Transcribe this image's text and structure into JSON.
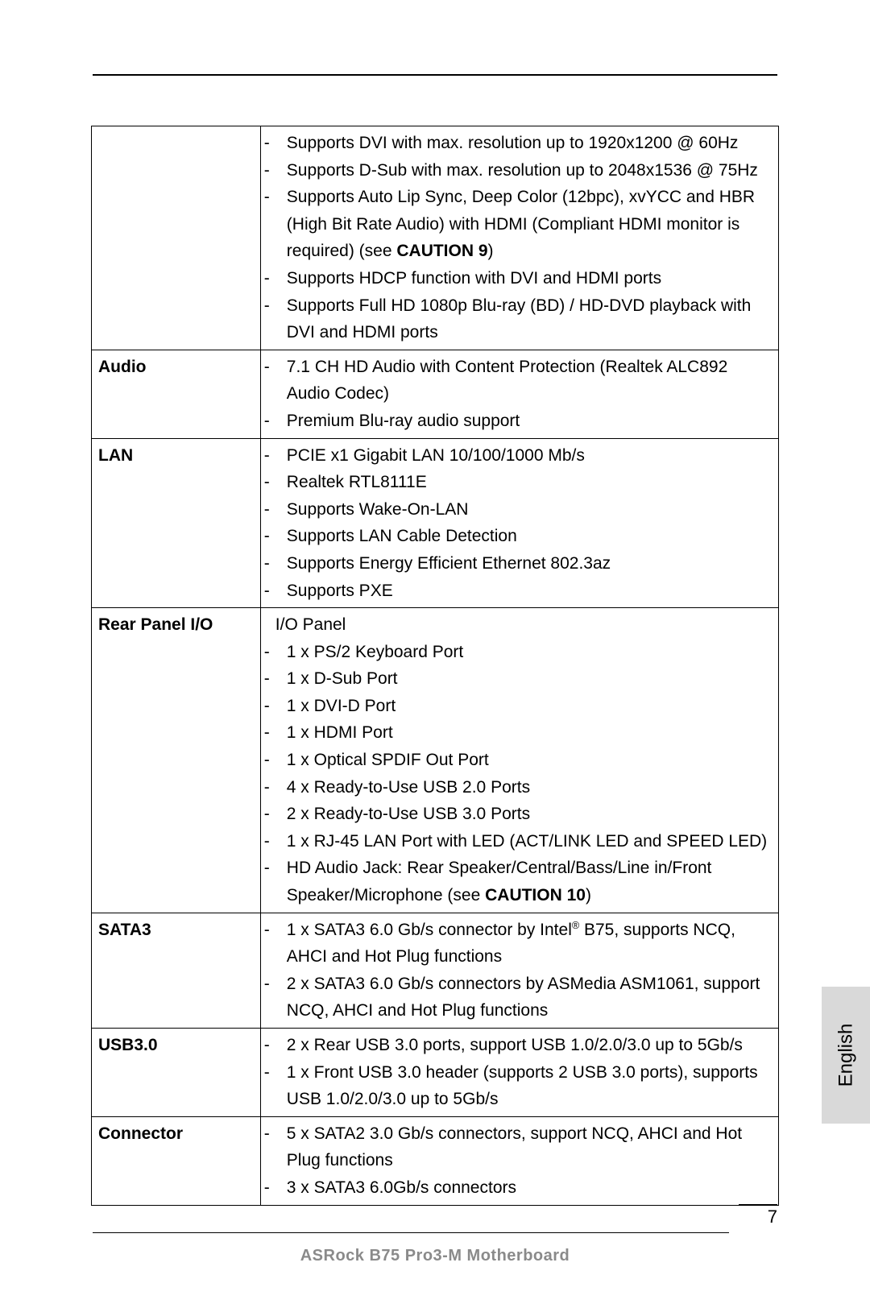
{
  "page": {
    "number": "7",
    "footer": "ASRock  B75 Pro3-M  Motherboard",
    "language_tab": "English"
  },
  "rows": [
    {
      "label": "",
      "items": [
        {
          "type": "dash",
          "text": "Supports DVI with max. resolution up to 1920x1200 @ 60Hz"
        },
        {
          "type": "dash",
          "text": "Supports D-Sub with max. resolution up to 2048x1536 @ 75Hz"
        },
        {
          "type": "dash",
          "parts": [
            {
              "t": "Supports Auto Lip Sync, Deep Color (12bpc), xvYCC and HBR (High Bit Rate Audio) with HDMI (Compliant HDMI monitor is required) (see "
            },
            {
              "t": "CAUTION 9",
              "bold": true
            },
            {
              "t": ")"
            }
          ]
        },
        {
          "type": "dash",
          "text": "Supports HDCP function with DVI and HDMI ports"
        },
        {
          "type": "dash",
          "text": "Supports Full HD 1080p Blu-ray (BD) / HD-DVD playback with DVI and HDMI ports"
        }
      ]
    },
    {
      "label": "Audio",
      "items": [
        {
          "type": "dash",
          "text": "7.1 CH HD Audio with Content Protection (Realtek ALC892 Audio Codec)"
        },
        {
          "type": "dash",
          "text": "Premium Blu-ray audio support"
        }
      ]
    },
    {
      "label": "LAN",
      "items": [
        {
          "type": "dash",
          "text": "PCIE x1 Gigabit LAN 10/100/1000 Mb/s"
        },
        {
          "type": "dash",
          "text": "Realtek RTL8111E"
        },
        {
          "type": "dash",
          "text": "Supports Wake-On-LAN"
        },
        {
          "type": "dash",
          "text": "Supports LAN Cable Detection"
        },
        {
          "type": "dash",
          "text": "Supports Energy Efficient Ethernet 802.3az"
        },
        {
          "type": "dash",
          "text": "Supports PXE"
        }
      ]
    },
    {
      "label": "Rear Panel I/O",
      "items": [
        {
          "type": "plain",
          "text": "I/O Panel"
        },
        {
          "type": "dash",
          "text": "1 x PS/2 Keyboard Port"
        },
        {
          "type": "dash",
          "text": "1 x D-Sub Port"
        },
        {
          "type": "dash",
          "text": "1 x DVI-D Port"
        },
        {
          "type": "dash",
          "text": "1 x HDMI Port"
        },
        {
          "type": "dash",
          "text": "1 x Optical SPDIF Out Port"
        },
        {
          "type": "dash",
          "text": "4 x Ready-to-Use USB 2.0 Ports"
        },
        {
          "type": "dash",
          "text": "2 x Ready-to-Use USB 3.0 Ports"
        },
        {
          "type": "dash",
          "text": "1 x RJ-45 LAN Port with LED (ACT/LINK LED and SPEED LED)"
        },
        {
          "type": "dash",
          "parts": [
            {
              "t": "HD Audio Jack: Rear Speaker/Central/Bass/Line in/Front Speaker/Microphone (see "
            },
            {
              "t": "CAUTION 10",
              "bold": true
            },
            {
              "t": ")"
            }
          ]
        }
      ]
    },
    {
      "label": "SATA3",
      "items": [
        {
          "type": "dash",
          "parts": [
            {
              "t": "1 x SATA3 6.0 Gb/s connector by Intel"
            },
            {
              "t": "®",
              "sup": true
            },
            {
              "t": " B75, supports NCQ, AHCI and Hot Plug functions"
            }
          ]
        },
        {
          "type": "dash",
          "text": "2 x SATA3 6.0 Gb/s connectors by ASMedia ASM1061, support NCQ, AHCI and Hot Plug functions"
        }
      ]
    },
    {
      "label": "USB3.0",
      "items": [
        {
          "type": "dash",
          "text": "2 x Rear USB 3.0 ports, support USB 1.0/2.0/3.0 up to 5Gb/s"
        },
        {
          "type": "dash",
          "text": "1 x Front USB 3.0 header (supports 2 USB 3.0 ports), supports USB 1.0/2.0/3.0 up to 5Gb/s"
        }
      ]
    },
    {
      "label": "Connector",
      "items": [
        {
          "type": "dash",
          "text": "5 x SATA2 3.0 Gb/s connectors, support NCQ, AHCI and Hot Plug functions"
        },
        {
          "type": "dash",
          "text": "3 x SATA3 6.0Gb/s connectors"
        }
      ]
    }
  ]
}
